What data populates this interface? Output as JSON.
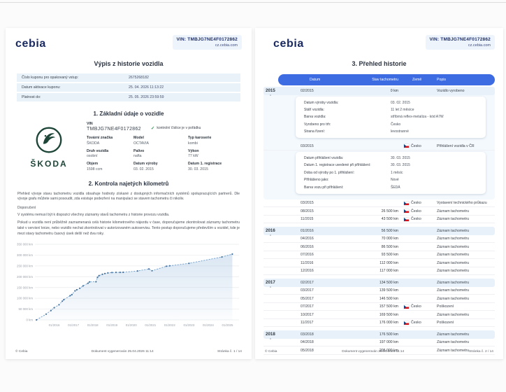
{
  "brand": {
    "logo_text": "cebia",
    "vin": "VIN: TMBJG7NE4F0172862",
    "site": "cz.cebia.com"
  },
  "page1": {
    "title": "Výpis z historie vozidla",
    "coupon_rows": [
      {
        "label": "Číslo kuponu pro opakovaný vstup:",
        "value": "2675268182"
      },
      {
        "label": "Datum aktivace kuponu:",
        "value": "25. 04. 2026 11:13:22"
      },
      {
        "label": "Platnost do:",
        "value": "25. 05. 2026 23:59:59"
      }
    ],
    "section1": {
      "title": "1. Základní údaje o vozidle",
      "logo_text": "ŠKODA",
      "vin_label": "VIN",
      "vin_value": "TMBJG7NE4F0172862",
      "vin_check": "kontrolní číslice je v pořádku",
      "fields": [
        {
          "label": "Tovární značka",
          "value": "ŠKODA"
        },
        {
          "label": "Model",
          "value": "OCTAVIA"
        },
        {
          "label": "Typ karoserie",
          "value": "kombi"
        },
        {
          "label": "Druh vozidla",
          "value": "osobní"
        },
        {
          "label": "Palivo",
          "value": "nafta"
        },
        {
          "label": "Výkon",
          "value": "77 kW"
        },
        {
          "label": "Objem",
          "value": "1598 ccm"
        },
        {
          "label": "Datum výroby",
          "value": "03. 02. 2015"
        },
        {
          "label": "Datum 1. registrace",
          "value": "30. 03. 2015"
        }
      ]
    },
    "section2": {
      "title": "2. Kontrola najetých kilometrů",
      "p1": "Přehled vývoje stavu tachometru vozidla obsahuje hodnoty získané z dostupných informačních systémů spolupracujících partnerů. Dle vývoje grafu můžete sami posoudit, zda existuje podezření na manipulaci se stavem tachometru či nikoliv.",
      "recommendation_label": "Doporučení",
      "p2": "V systému nemusí být k dispozici všechny záznamy stavů tachometru z historie provozu vozidla.",
      "p3": "Pokud u vozidla není průběžně zaznamenaná celá historie kilometrového nájezdu v čase, doporučujeme zkontrolovat záznamy tachometru také v servisní knize, nebo vozidlo nechat zkontrolovat v autorizovaném autoservisu. Tento postup doporučujeme především u vozidel, kde je mezi stavy tachometru časový úsek delší než dva roky."
    },
    "footer": {
      "copyright": "© Cebia",
      "generated": "Dokument vygenerován 25.04.2026 11:14",
      "page": "Stránka č. 1 / 14"
    }
  },
  "chart_data": {
    "type": "area",
    "title": "",
    "xlabel": "",
    "ylabel": "",
    "unit": "km",
    "ylim": [
      0,
      350000
    ],
    "xlim": [
      2015.0,
      2025.6
    ],
    "grid": true,
    "y_ticks": [
      "0 km",
      "50 000 km",
      "100 000 km",
      "150 000 km",
      "200 000 km",
      "250 000 km",
      "300 000 km",
      "350 000 km"
    ],
    "y_tick_values": [
      0,
      50000,
      100000,
      150000,
      200000,
      250000,
      300000,
      350000
    ],
    "x_ticks": [
      "01/2016",
      "01/2017",
      "01/2018",
      "01/2019",
      "01/2020",
      "01/2021",
      "01/2022",
      "01/2023",
      "01/2024",
      "01/2025"
    ],
    "x_tick_values": [
      2016,
      2017,
      2018,
      2019,
      2020,
      2021,
      2022,
      2023,
      2024,
      2025
    ],
    "series": [
      {
        "name": "Stav tachometru",
        "points": [
          [
            2015.08,
            0
          ],
          [
            2015.58,
            26500
          ],
          [
            2015.83,
            43500
          ],
          [
            2016.0,
            56500
          ],
          [
            2016.25,
            70000
          ],
          [
            2016.42,
            86500
          ],
          [
            2016.5,
            93500
          ],
          [
            2016.83,
            112000
          ],
          [
            2016.92,
            117000
          ],
          [
            2017.08,
            134500
          ],
          [
            2017.17,
            139500
          ],
          [
            2017.33,
            146500
          ],
          [
            2017.5,
            157500
          ],
          [
            2017.75,
            169500
          ],
          [
            2017.83,
            176000
          ],
          [
            2018.17,
            176500
          ],
          [
            2018.25,
            197000
          ],
          [
            2018.33,
            205000
          ],
          [
            2018.5,
            211000
          ],
          [
            2018.63,
            214500
          ],
          [
            2018.79,
            217500
          ],
          [
            2019.0,
            219500
          ],
          [
            2019.21,
            220000
          ],
          [
            2019.42,
            220000
          ],
          [
            2019.58,
            220500
          ],
          [
            2020.33,
            226500
          ],
          [
            2020.92,
            236000
          ],
          [
            2021.08,
            227500
          ],
          [
            2021.83,
            248500
          ],
          [
            2022.0,
            250500
          ],
          [
            2023.0,
            262000
          ],
          [
            2024.71,
            291500
          ],
          [
            2025.25,
            304500
          ]
        ]
      }
    ]
  },
  "page2": {
    "title": "3. Přehled historie",
    "headers": [
      "Datum",
      "Stav tachometru",
      "Země",
      "Popis"
    ],
    "rows": [
      {
        "year": "2015",
        "first": true,
        "band": true,
        "date": "02/2015",
        "km": "0 km",
        "flag": false,
        "country": "",
        "desc": "Vozidlo vyrobeno"
      },
      {
        "band": true,
        "items": [
          {
            "label": "Datum výroby vozidla:",
            "value": "03. 02. 2015"
          },
          {
            "label": "Stáří vozidla:",
            "value": "11 let 2 měsíce"
          },
          {
            "label": "Barva vozidla:",
            "value": "stříbrná reflex-metalíza - kód A7W"
          },
          {
            "label": "Vyrobeno pro trh:",
            "value": "Česko"
          },
          {
            "label": "Strana řízení:",
            "value": "levostranné"
          }
        ]
      },
      {
        "band": true,
        "date": "03/2015",
        "km": "",
        "flag": true,
        "country": "Česko",
        "desc": "Přihlášení vozidla v ČR"
      },
      {
        "band": true,
        "items": [
          {
            "label": "Datum přihlášení vozidla:",
            "value": "30. 03. 2015"
          },
          {
            "label": "Datum 1. registrace uvedené při přihlášení:",
            "value": "30. 03. 2015"
          },
          {
            "label": "Doba od výroby po 1. přihlášení:",
            "value": "1 měsíc"
          },
          {
            "label": "Přihlášeno jako:",
            "value": "Nové"
          },
          {
            "label": "Barva vozu při přihlášení:",
            "value": "ŠEDÁ"
          }
        ]
      },
      {
        "date": "03/2015",
        "km": "",
        "flag": true,
        "country": "Česko",
        "desc": "Vystavení technického průkazu"
      },
      {
        "date": "08/2015",
        "km": "26 500 km",
        "flag": true,
        "country": "Česko",
        "desc": "Záznam tachometru"
      },
      {
        "date": "11/2015",
        "km": "43 500 km",
        "flag": true,
        "country": "Česko",
        "desc": "Záznam tachometru"
      },
      {
        "year": "2016",
        "first": true,
        "ygap": true,
        "date": "01/2016",
        "km": "56 500 km",
        "flag": false,
        "country": "",
        "desc": "Záznam tachometru"
      },
      {
        "date": "04/2016",
        "km": "70 000 km",
        "flag": false,
        "country": "",
        "desc": "Záznam tachometru"
      },
      {
        "date": "06/2016",
        "km": "86 500 km",
        "flag": false,
        "country": "",
        "desc": "Záznam tachometru"
      },
      {
        "date": "07/2016",
        "km": "93 500 km",
        "flag": false,
        "country": "",
        "desc": "Záznam tachometru"
      },
      {
        "date": "11/2016",
        "km": "112 000 km",
        "flag": false,
        "country": "",
        "desc": "Záznam tachometru"
      },
      {
        "date": "12/2016",
        "km": "117 000 km",
        "flag": false,
        "country": "",
        "desc": "Záznam tachometru"
      },
      {
        "year": "2017",
        "first": true,
        "ygap": true,
        "date": "02/2017",
        "km": "134 500 km",
        "flag": false,
        "country": "",
        "desc": "Záznam tachometru"
      },
      {
        "date": "03/2017",
        "km": "139 500 km",
        "flag": false,
        "country": "",
        "desc": "Záznam tachometru"
      },
      {
        "date": "05/2017",
        "km": "146 500 km",
        "flag": false,
        "country": "",
        "desc": "Záznam tachometru"
      },
      {
        "date": "07/2017",
        "km": "157 500 km",
        "flag": true,
        "country": "Česko",
        "desc": "Poškození"
      },
      {
        "date": "10/2017",
        "km": "169 500 km",
        "flag": false,
        "country": "",
        "desc": "Záznam tachometru"
      },
      {
        "date": "11/2017",
        "km": "176 000 km",
        "flag": true,
        "country": "Česko",
        "desc": "Poškození"
      },
      {
        "year": "2018",
        "first": true,
        "ygap": true,
        "date": "03/2018",
        "km": "176 500 km",
        "flag": false,
        "country": "",
        "desc": "Záznam tachometru"
      },
      {
        "date": "04/2018",
        "km": "197 000 km",
        "flag": false,
        "country": "",
        "desc": "Záznam tachometru"
      },
      {
        "date": "05/2018",
        "km": "205 000 km",
        "flag": false,
        "country": "",
        "desc": "Záznam tachometru"
      }
    ],
    "footer": {
      "copyright": "© Cebia",
      "generated": "Dokument vygenerován 25.04.2026 11:14",
      "page": "Stránka č. 2 / 14"
    }
  }
}
